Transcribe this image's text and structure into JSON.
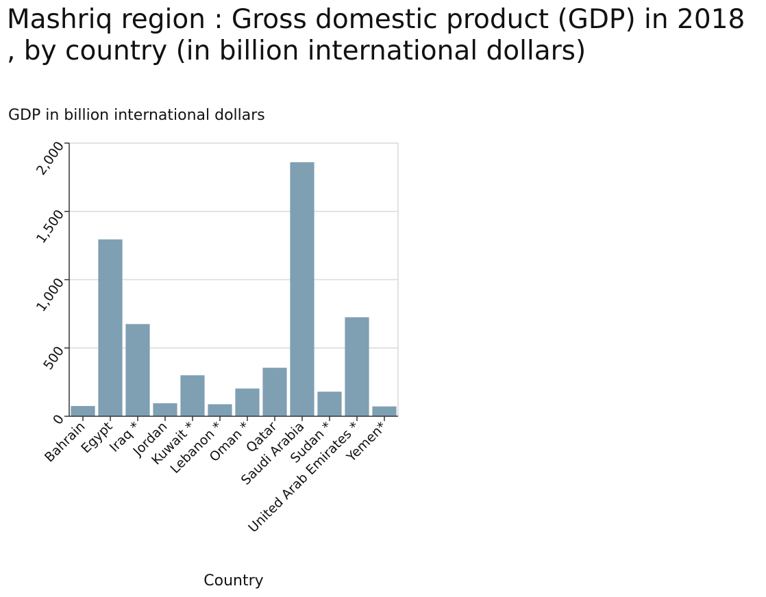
{
  "chart_data": {
    "type": "bar",
    "title": "Mashriq region : Gross domestic product (GDP) in 2018 , by country (in billion international dollars)",
    "ylabel": "GDP in billion international dollars",
    "xlabel": "Country",
    "categories": [
      "Bahrain",
      "Egypt",
      "Iraq *",
      "Jordan",
      "Kuwait *",
      "Lebanon *",
      "Oman *",
      "Qatar",
      "Saudi Arabia",
      "Sudan *",
      "United Arab Emirates *",
      "Yemen*"
    ],
    "values": [
      75,
      1295,
      675,
      95,
      300,
      88,
      203,
      355,
      1860,
      180,
      725,
      72
    ],
    "ylim": [
      0,
      2000
    ],
    "yticks": [
      0,
      500,
      1000,
      1500,
      2000
    ],
    "ytick_labels": [
      "0",
      "500",
      "1,000",
      "1,500",
      "2,000"
    ],
    "grid": true,
    "bar_color": "#7f9fb3",
    "grid_color": "#d9d9d9",
    "axis_color": "#333333"
  }
}
